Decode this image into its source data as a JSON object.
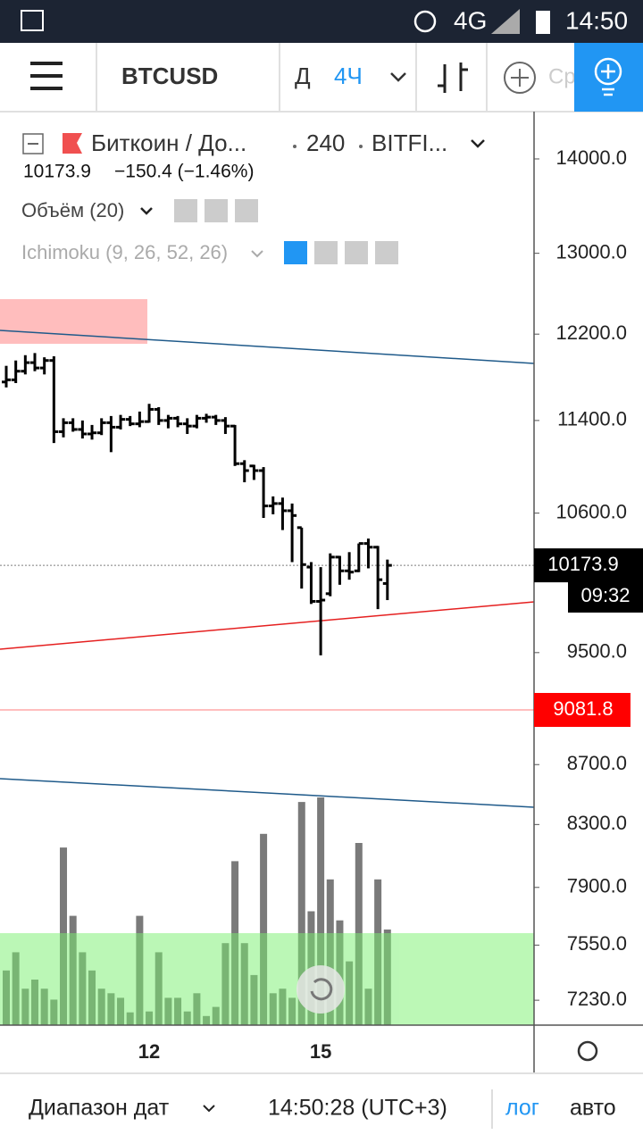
{
  "status_bar": {
    "network": "4G",
    "time": "14:50"
  },
  "toolbar": {
    "symbol": "BTCUSD",
    "period": "Д",
    "interval": "4Ч",
    "search": "Ср"
  },
  "legend": {
    "title": "Биткоин / До...",
    "interval": "240",
    "exchange": "BITFI...",
    "price": "10173.9",
    "change": "−150.4 (−1.46%)",
    "volume_study": "Объём (20)",
    "ichimoku": "Ichimoku (9, 26, 52, 26)"
  },
  "timer": "09:32",
  "bottom_bar": {
    "date_range": "Диапазон дат",
    "clock": "14:50:28 (UTC+3)",
    "log": "лог",
    "auto": "авто"
  },
  "chart_data": {
    "type": "ohlc",
    "log": true,
    "categories": [
      null,
      null,
      null,
      null,
      null,
      null,
      null,
      null,
      null,
      null,
      null,
      null,
      null,
      null,
      null,
      "12",
      null,
      null,
      null,
      null,
      null,
      null,
      null,
      null,
      null,
      null,
      null,
      null,
      null,
      null,
      null,
      null,
      null,
      "15",
      null,
      null,
      null,
      null,
      null,
      null,
      null
    ],
    "open": [
      11750,
      11770,
      11850,
      11930,
      11880,
      11950,
      11300,
      11380,
      11320,
      11280,
      11290,
      11380,
      11340,
      11410,
      11370,
      11390,
      11500,
      11400,
      11420,
      11370,
      11350,
      11420,
      11430,
      11400,
      11350,
      11020,
      11000,
      10960,
      10660,
      10680,
      10620,
      10480,
      10160,
      9890,
      9950,
      10240,
      10130,
      10130,
      10350,
      10320,
      10030
    ],
    "high": [
      11900,
      11950,
      12000,
      12020,
      11980,
      11990,
      11420,
      11420,
      11400,
      11360,
      11420,
      11440,
      11450,
      11440,
      11480,
      11550,
      11520,
      11450,
      11440,
      11420,
      11450,
      11460,
      11450,
      11430,
      11360,
      11050,
      11010,
      10990,
      10740,
      10730,
      10680,
      10480,
      10200,
      10160,
      10270,
      10250,
      10280,
      10350,
      10390,
      10330,
      10220
    ],
    "low": [
      11700,
      11740,
      11820,
      11850,
      11820,
      11200,
      11250,
      11300,
      11240,
      11230,
      11270,
      11120,
      11320,
      11350,
      11340,
      11380,
      11360,
      11330,
      11340,
      11280,
      11330,
      11380,
      11360,
      11280,
      11000,
      10860,
      10880,
      10560,
      10590,
      10460,
      10200,
      9990,
      9870,
      9480,
      9930,
      10020,
      10060,
      10120,
      10150,
      9830,
      9900
    ],
    "close": [
      11770,
      11850,
      11930,
      11880,
      11950,
      11300,
      11380,
      11320,
      11280,
      11290,
      11380,
      11340,
      11410,
      11370,
      11390,
      11500,
      11400,
      11420,
      11370,
      11350,
      11420,
      11430,
      11400,
      11350,
      11020,
      10960,
      10960,
      10660,
      10680,
      10620,
      10580,
      10180,
      9890,
      9900,
      10240,
      10130,
      10120,
      10350,
      10320,
      10060,
      10173.9
    ],
    "volume": [
      60,
      80,
      40,
      50,
      40,
      28,
      195,
      120,
      80,
      60,
      40,
      35,
      30,
      14,
      120,
      15,
      80,
      30,
      30,
      15,
      35,
      10,
      20,
      90,
      180,
      90,
      55,
      210,
      35,
      40,
      30,
      245,
      125,
      250,
      160,
      115,
      70,
      200,
      40,
      160,
      105
    ],
    "bar_color": "#000000",
    "volume_color": "#7a7a7a",
    "ylim": [
      7090,
      14530
    ],
    "yticks": [
      {
        "value": 14000,
        "label": "14000.0"
      },
      {
        "value": 13000,
        "label": "13000.0"
      },
      {
        "value": 12200,
        "label": "12200.0"
      },
      {
        "value": 11400,
        "label": "11400.0"
      },
      {
        "value": 10600,
        "label": "10600.0"
      },
      {
        "value": 9500,
        "label": "9500.0"
      },
      {
        "value": 8700,
        "label": "8700.0"
      },
      {
        "value": 8300,
        "label": "8300.0"
      },
      {
        "value": 7900,
        "label": "7900.0"
      },
      {
        "value": 7550,
        "label": "7550.0"
      },
      {
        "value": 7230,
        "label": "7230.0"
      }
    ],
    "price_lines": [
      {
        "value": 10173.9,
        "color": "#000000"
      },
      {
        "value": 9081.8,
        "color": "#ff0000"
      }
    ]
  }
}
